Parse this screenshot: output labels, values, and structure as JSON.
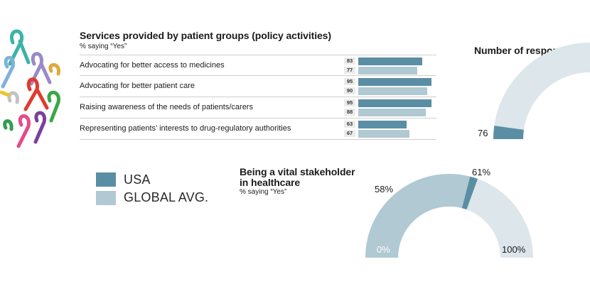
{
  "colors": {
    "usa": "#5a8ea4",
    "global": "#b0c9d3",
    "gauge_bg": "#dde6ea"
  },
  "services": {
    "title": "Services provided by patient groups (policy activities)",
    "subtitle": "% saying “Yes”"
  },
  "responses": {
    "title": "Number of responses",
    "value_label": "76"
  },
  "legend": {
    "usa": "USA",
    "global": "GLOBAL AVG."
  },
  "stakeholder": {
    "title_line1": "Being a vital stakeholder",
    "title_line2": "in healthcare",
    "subtitle": "% saying “Yes”",
    "global_label": "58%",
    "usa_label": "61%",
    "min_label": "0%",
    "max_label": "100%"
  },
  "chart_data": [
    {
      "type": "bar",
      "orientation": "horizontal",
      "title": "Services provided by patient groups (policy activities)",
      "subtitle": "% saying “Yes”",
      "categories": [
        "Advocating for better access to medicines",
        "Advocating for better patient care",
        "Raising awareness of the needs of patients/carers",
        "Representing patients’ interests to drug-regulatory authorities"
      ],
      "series": [
        {
          "name": "USA",
          "values": [
            83,
            95,
            95,
            63
          ]
        },
        {
          "name": "GLOBAL AVG.",
          "values": [
            77,
            90,
            88,
            67
          ]
        }
      ],
      "xlim": [
        0,
        100
      ],
      "legend": "left"
    },
    {
      "type": "gauge",
      "title": "Number of responses",
      "value": 76
    },
    {
      "type": "gauge",
      "title": "Being a vital stakeholder in healthcare",
      "subtitle": "% saying “Yes”",
      "range": [
        0,
        100
      ],
      "series": [
        {
          "name": "USA",
          "value": 61
        },
        {
          "name": "GLOBAL AVG.",
          "value": 58
        }
      ]
    }
  ]
}
